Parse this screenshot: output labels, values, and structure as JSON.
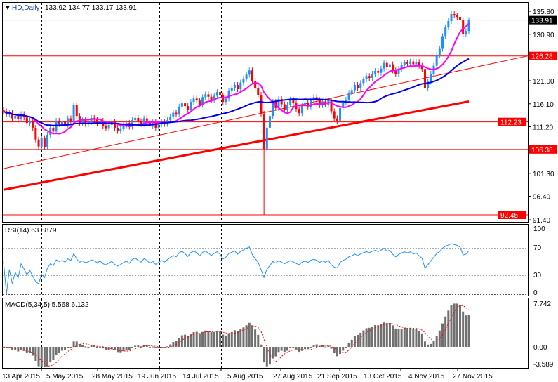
{
  "header": {
    "symbol": "HD,Daily",
    "ohlc": "133.92 134.77 133.17 133.91"
  },
  "colors": {
    "bull": "#1e90ff",
    "bear": "#ff0000",
    "ma_fast": "#ff00ff",
    "ma_mid": "#0000ee",
    "ma_slow": "#ff0000",
    "levels": "#ff0000",
    "rsi": "#1e90ff",
    "macd_hist": "#707070",
    "macd_signal": "#ff0000"
  },
  "price_axis": {
    "ticks": [
      135.8,
      130.9,
      121.0,
      116.1,
      111.2,
      101.3,
      96.4,
      91.4
    ],
    "tick_labels": [
      "135.80",
      "130.90",
      "121.00",
      "116.10",
      "111.20",
      "101.30",
      "96.40",
      "91.40"
    ],
    "current": {
      "value": 133.91,
      "label": "133.91"
    },
    "levels": [
      {
        "value": 126.28,
        "label": "126.28"
      },
      {
        "value": 112.23,
        "label": "112.23"
      },
      {
        "value": 106.38,
        "label": "106.38"
      },
      {
        "value": 92.45,
        "label": "92.45"
      }
    ]
  },
  "trendline": {
    "from": [
      0,
      102.3
    ],
    "to": [
      180,
      126.28
    ]
  },
  "ma_slow": {
    "from": [
      0,
      97.8
    ],
    "to": [
      159,
      116.6
    ]
  },
  "closes": [
    114.5,
    113.8,
    114.2,
    113.0,
    113.5,
    112.8,
    113.9,
    113.2,
    112.0,
    112.5,
    111.0,
    108.5,
    107.0,
    108.8,
    106.9,
    109.5,
    111.0,
    110.2,
    112.5,
    111.8,
    112.3,
    111.6,
    113.0,
    112.4,
    115.8,
    113.5,
    112.0,
    112.6,
    111.8,
    112.2,
    113.1,
    112.7,
    111.9,
    112.5,
    111.4,
    110.9,
    111.6,
    112.2,
    111.0,
    110.3,
    110.8,
    111.5,
    112.0,
    111.2,
    112.6,
    113.1,
    112.4,
    111.8,
    113.0,
    112.5,
    111.4,
    112.2,
    111.0,
    111.7,
    112.3,
    111.8,
    112.6,
    113.4,
    114.2,
    113.8,
    115.5,
    116.2,
    115.6,
    114.8,
    116.5,
    117.2,
    116.8,
    115.9,
    117.5,
    118.1,
    117.6,
    116.9,
    117.8,
    118.6,
    117.9,
    116.5,
    117.2,
    118.8,
    119.5,
    120.1,
    119.2,
    120.6,
    121.4,
    122.3,
    123.2,
    121.0,
    119.5,
    118.0,
    114.0,
    106.5,
    111.0,
    113.5,
    116.5,
    115.2,
    117.1,
    116.0,
    114.8,
    115.9,
    117.0,
    116.2,
    115.0,
    114.1,
    115.6,
    116.4,
    115.5,
    116.8,
    117.5,
    116.9,
    115.8,
    116.6,
    115.9,
    116.8,
    114.5,
    113.0,
    112.5,
    115.2,
    116.3,
    117.0,
    118.4,
    119.0,
    120.1,
    119.4,
    120.5,
    121.3,
    122.0,
    121.6,
    122.5,
    123.1,
    122.7,
    123.6,
    124.8,
    123.9,
    124.5,
    123.2,
    122.4,
    123.5,
    124.3,
    124.9,
    124.6,
    125.1,
    124.5,
    125.0,
    124.2,
    123.5,
    119.5,
    120.8,
    122.5,
    124.2,
    126.5,
    127.8,
    130.5,
    132.4,
    133.7,
    135.2,
    134.9,
    134.6,
    134.0,
    131.0,
    131.6,
    133.91
  ],
  "crash_bar": {
    "index": 89,
    "low": 92.45
  },
  "rsi": {
    "label": "RSI(14) 63.8879",
    "levels": [
      70,
      30
    ],
    "axis_labels": [
      "100",
      "70",
      "30",
      "0"
    ]
  },
  "macd": {
    "label": "MACD(5,34,5) 5.568 6.132",
    "axis_labels": [
      "7.742",
      "0.00",
      "-3.589"
    ]
  },
  "dates": [
    "13 Apr 2015",
    "5 May 2015",
    "28 May 2015",
    "19 Jun 2015",
    "14 Jul 2015",
    "5 Aug 2015",
    "27 Aug 2015",
    "21 Sep 2015",
    "13 Oct 2015",
    "4 Nov 2015",
    "27 Nov 2015"
  ]
}
